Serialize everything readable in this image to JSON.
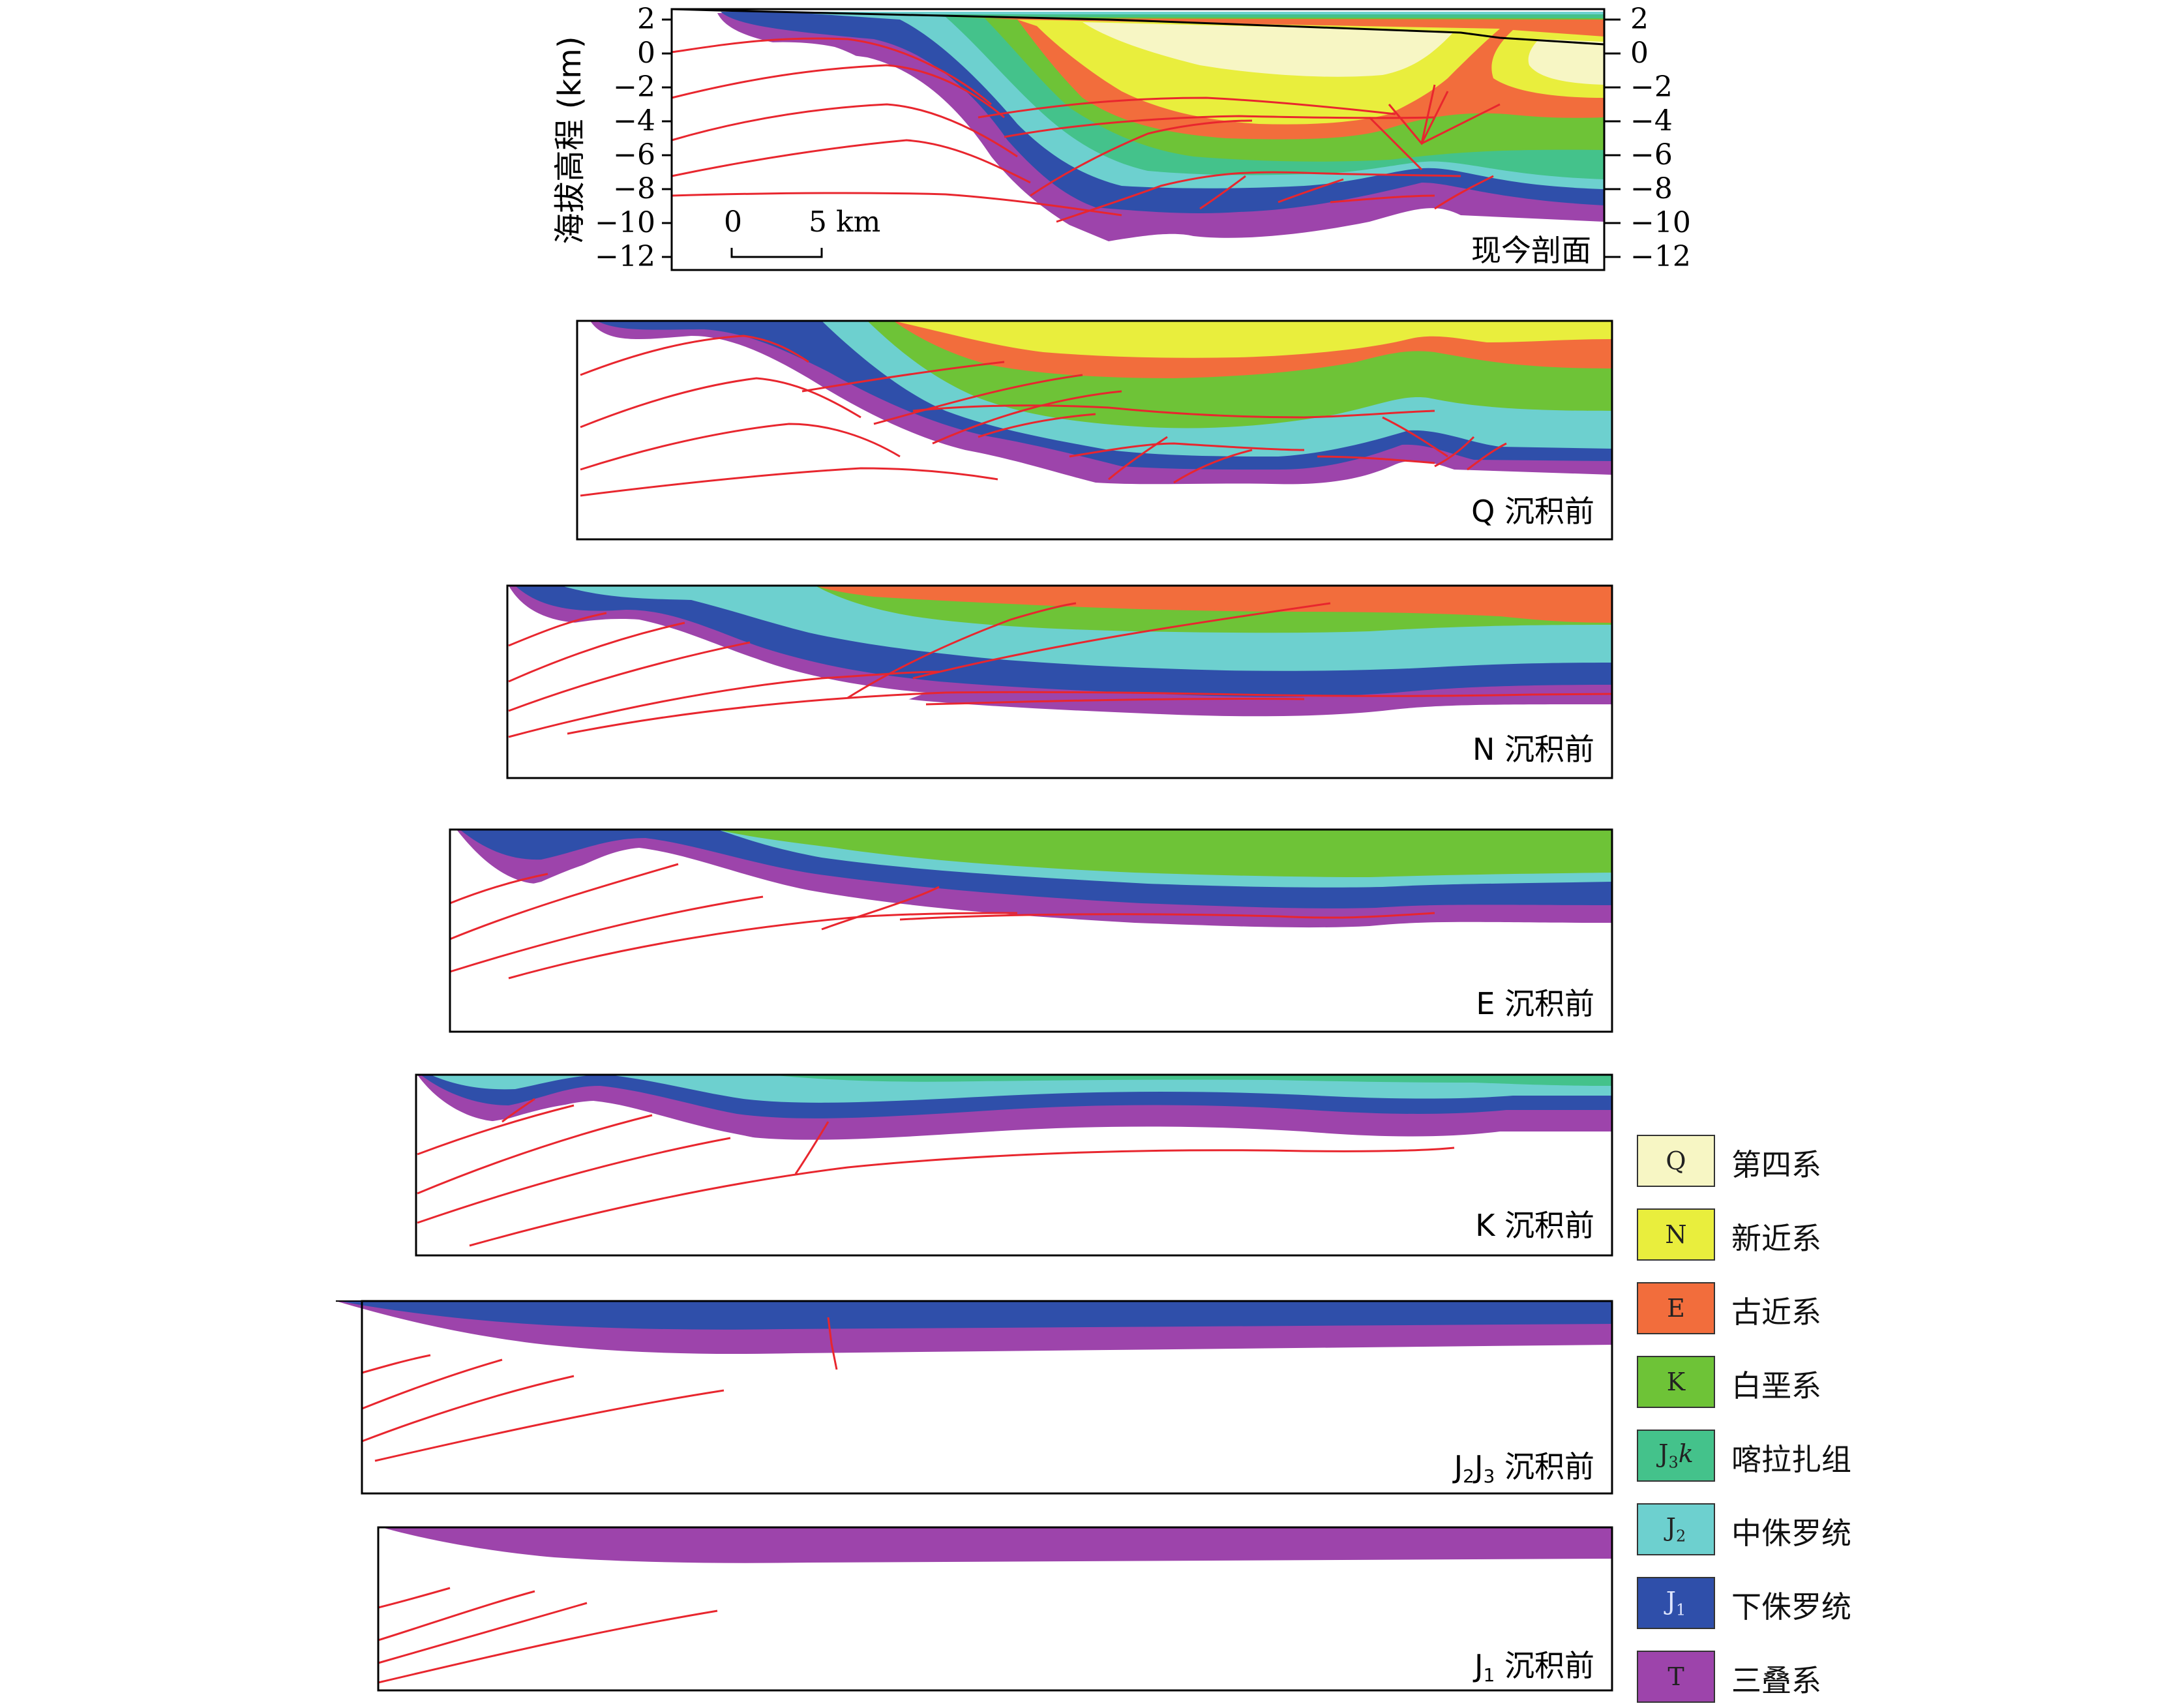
{
  "colors": {
    "Q": "#f7f6c4",
    "N": "#e9ee3d",
    "E": "#f26d3c",
    "K": "#6ec337",
    "J3k": "#44c28b",
    "J2": "#6dd0cf",
    "J1": "#2f4faa",
    "T": "#9d44ab",
    "fault": "#e8262e",
    "frame": "#000000"
  },
  "axis": {
    "ylabel": "海拔高程 (km)",
    "ticks": [
      "2",
      "0",
      "−2",
      "−4",
      "−6",
      "−8",
      "−10",
      "−12"
    ],
    "scale_label_zero": "0",
    "scale_label_five": "5 km"
  },
  "panels": [
    {
      "id": "present",
      "label": "现今剖面"
    },
    {
      "id": "preQ",
      "label": "Q 沉积前"
    },
    {
      "id": "preN",
      "label": "N 沉积前"
    },
    {
      "id": "preE",
      "label": "E 沉积前"
    },
    {
      "id": "preK",
      "label": "K 沉积前"
    },
    {
      "id": "preJ2J3",
      "label_parts": [
        "J",
        "2",
        "J",
        "3",
        " 沉积前"
      ]
    },
    {
      "id": "preJ1",
      "label_parts": [
        "J",
        "1",
        " 沉积前"
      ]
    }
  ],
  "legend": [
    {
      "code": "Q",
      "name": "第四系",
      "color_key": "Q"
    },
    {
      "code": "N",
      "name": "新近系",
      "color_key": "N"
    },
    {
      "code": "E",
      "name": "古近系",
      "color_key": "E"
    },
    {
      "code": "K",
      "name": "白垩系",
      "color_key": "K"
    },
    {
      "code_parts": [
        "J",
        "3",
        "k"
      ],
      "name": "喀拉扎组",
      "color_key": "J3k"
    },
    {
      "code_parts": [
        "J",
        "2"
      ],
      "name": "中侏罗统",
      "color_key": "J2"
    },
    {
      "code_parts": [
        "J",
        "1"
      ],
      "name": "下侏罗统",
      "color_key": "J1"
    },
    {
      "code": "T",
      "name": "三叠系",
      "color_key": "T"
    }
  ]
}
